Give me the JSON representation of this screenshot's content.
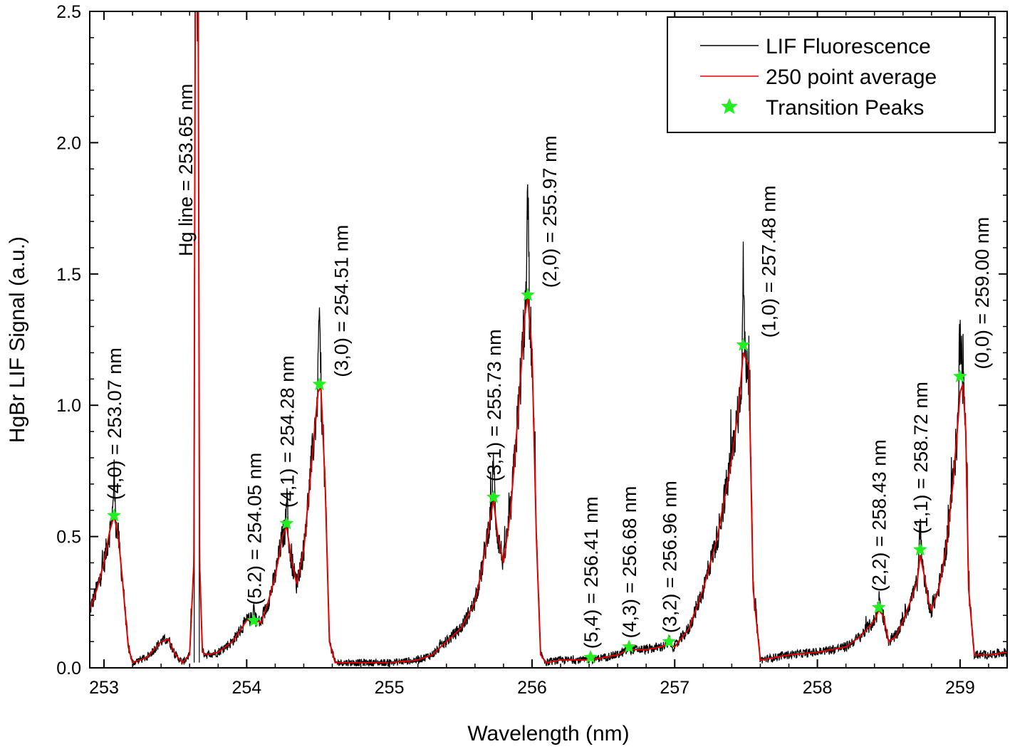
{
  "chart_data": {
    "type": "line",
    "xlabel": "Wavelength (nm)",
    "ylabel": "HgBr LIF Signal (a.u.)",
    "xlim": [
      252.9,
      259.33
    ],
    "ylim": [
      0,
      2.5
    ],
    "xticks": [
      "253",
      "254",
      "255",
      "256",
      "257",
      "258",
      "259"
    ],
    "yticks": [
      "0.0",
      "0.5",
      "1.0",
      "1.5",
      "2.0",
      "2.5"
    ],
    "grid": false,
    "legend_position": "top-right",
    "legend": [
      {
        "label": "LIF Fluorescence",
        "marker": "line",
        "color": "#000000"
      },
      {
        "label": "250 point average",
        "marker": "line",
        "color": "#e00000"
      },
      {
        "label": "Transition Peaks",
        "marker": "star",
        "color": "#22ee22"
      }
    ],
    "colors": {
      "fluorescence": "#000000",
      "average": "#e00000",
      "peaks": "#22ee22"
    },
    "series": [
      {
        "name": "250 point average",
        "x": [
          252.9,
          252.95,
          253.0,
          253.04,
          253.07,
          253.1,
          253.13,
          253.17,
          253.2,
          253.3,
          253.4,
          253.45,
          253.5,
          253.55,
          253.6,
          253.63,
          253.64,
          253.645,
          253.655,
          253.66,
          253.67,
          253.69,
          253.72,
          253.8,
          253.9,
          253.95,
          254.0,
          254.05,
          254.1,
          254.15,
          254.2,
          254.25,
          254.28,
          254.31,
          254.35,
          254.4,
          254.45,
          254.5,
          254.52,
          254.55,
          254.58,
          254.62,
          254.7,
          254.9,
          255.0,
          255.2,
          255.3,
          255.4,
          255.5,
          255.6,
          255.65,
          255.7,
          255.73,
          255.76,
          255.8,
          255.85,
          255.9,
          255.95,
          255.97,
          256.0,
          256.03,
          256.06,
          256.1,
          256.2,
          256.3,
          256.41,
          256.5,
          256.6,
          256.68,
          256.8,
          256.9,
          256.96,
          257.0,
          257.1,
          257.2,
          257.3,
          257.4,
          257.45,
          257.48,
          257.52,
          257.55,
          257.6,
          257.8,
          258.0,
          258.2,
          258.3,
          258.4,
          258.43,
          258.46,
          258.5,
          258.55,
          258.6,
          258.65,
          258.7,
          258.72,
          258.75,
          258.78,
          258.8,
          258.85,
          258.9,
          258.95,
          258.98,
          259.0,
          259.02,
          259.04,
          259.06,
          259.1,
          259.2,
          259.33
        ],
        "y": [
          0.22,
          0.3,
          0.4,
          0.52,
          0.58,
          0.5,
          0.33,
          0.08,
          0.02,
          0.04,
          0.1,
          0.11,
          0.05,
          0.02,
          0.05,
          0.4,
          2.6,
          2.6,
          2.6,
          2.6,
          0.4,
          0.06,
          0.05,
          0.06,
          0.1,
          0.14,
          0.18,
          0.19,
          0.17,
          0.25,
          0.35,
          0.5,
          0.54,
          0.42,
          0.32,
          0.45,
          0.75,
          1.05,
          1.07,
          0.7,
          0.1,
          0.02,
          0.02,
          0.02,
          0.02,
          0.03,
          0.05,
          0.1,
          0.15,
          0.25,
          0.38,
          0.55,
          0.64,
          0.5,
          0.4,
          0.6,
          0.95,
          1.35,
          1.41,
          1.2,
          0.5,
          0.05,
          0.02,
          0.03,
          0.03,
          0.03,
          0.04,
          0.05,
          0.07,
          0.07,
          0.08,
          0.09,
          0.08,
          0.15,
          0.3,
          0.5,
          0.8,
          1.0,
          1.2,
          1.15,
          0.3,
          0.03,
          0.05,
          0.06,
          0.08,
          0.12,
          0.18,
          0.22,
          0.2,
          0.1,
          0.12,
          0.18,
          0.25,
          0.33,
          0.43,
          0.35,
          0.25,
          0.22,
          0.3,
          0.45,
          0.7,
          0.9,
          1.05,
          1.08,
          0.9,
          0.3,
          0.05,
          0.05,
          0.06
        ]
      },
      {
        "name": "Transition Peaks",
        "points": [
          {
            "x": 253.07,
            "y": 0.58,
            "label": "(4,0) = 253.07 nm"
          },
          {
            "x": 254.05,
            "y": 0.18,
            "label": "(5.2) = 254.05 nm"
          },
          {
            "x": 254.28,
            "y": 0.55,
            "label": "(4,1) = 254.28 nm"
          },
          {
            "x": 254.51,
            "y": 1.08,
            "label": "(3,0) = 254.51 nm"
          },
          {
            "x": 255.73,
            "y": 0.65,
            "label": "(3,1) = 255.73 nm"
          },
          {
            "x": 255.97,
            "y": 1.42,
            "label": "(2,0) = 255.97 nm"
          },
          {
            "x": 256.41,
            "y": 0.04,
            "label": "(5,4) = 256.41 nm"
          },
          {
            "x": 256.68,
            "y": 0.08,
            "label": "(4,3) = 256.68 nm"
          },
          {
            "x": 256.96,
            "y": 0.1,
            "label": "(3,2) = 256.96 nm"
          },
          {
            "x": 257.48,
            "y": 1.23,
            "label": "(1,0) = 257.48 nm"
          },
          {
            "x": 258.43,
            "y": 0.23,
            "label": "(2,2) = 258.43 nm"
          },
          {
            "x": 258.72,
            "y": 0.45,
            "label": "(1,1) = 258.72 nm"
          },
          {
            "x": 259.0,
            "y": 1.11,
            "label": "(0,0) = 259.00 nm"
          }
        ]
      }
    ],
    "annotations": [
      {
        "text": "Hg line = 253.65 nm",
        "x": 253.65
      }
    ]
  }
}
